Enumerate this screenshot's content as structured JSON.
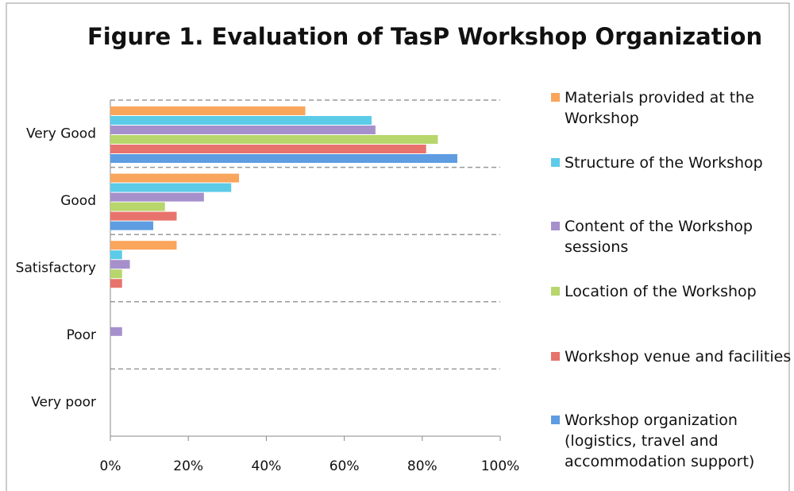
{
  "chart_data": {
    "type": "bar",
    "orientation": "horizontal",
    "title": "Figure 1. Evaluation of TasP Workshop Organization",
    "categories": [
      "Very Good",
      "Good",
      "Satisfactory",
      "Poor",
      "Very poor"
    ],
    "series": [
      {
        "name": "Materials provided at the Workshop",
        "color": "#f9a55c",
        "values": [
          50,
          33,
          17,
          0,
          0
        ]
      },
      {
        "name": "Structure of the Workshop",
        "color": "#5ccbe8",
        "values": [
          67,
          31,
          3,
          0,
          0
        ]
      },
      {
        "name": "Content of the Workshop sessions",
        "color": "#a690cc",
        "values": [
          68,
          24,
          5,
          3,
          0
        ]
      },
      {
        "name": "Location of the Workshop",
        "color": "#b7d66c",
        "values": [
          84,
          14,
          3,
          0,
          0
        ]
      },
      {
        "name": "Workshop venue and facilities",
        "color": "#e8736c",
        "values": [
          81,
          17,
          3,
          0,
          0
        ]
      },
      {
        "name": "Workshop organization (logistics, travel and accommodation support)",
        "color": "#5e9de2",
        "values": [
          89,
          11,
          0,
          0,
          0
        ]
      }
    ],
    "xlim": [
      0,
      100
    ],
    "xticks": [
      {
        "value": 0,
        "label": "0%"
      },
      {
        "value": 20,
        "label": "20%"
      },
      {
        "value": 40,
        "label": "40%"
      },
      {
        "value": 60,
        "label": "60%"
      },
      {
        "value": 80,
        "label": "80%"
      },
      {
        "value": 100,
        "label": "100%"
      }
    ],
    "legend": "right"
  }
}
